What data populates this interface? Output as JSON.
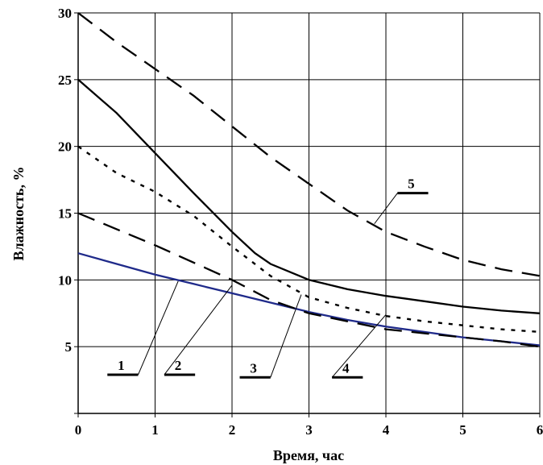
{
  "chart_data": {
    "type": "line",
    "xlabel": "Время, час",
    "ylabel": "Влажность, %",
    "xlim": [
      0,
      6
    ],
    "ylim": [
      0,
      30
    ],
    "x_ticks": [
      "0",
      "1",
      "2",
      "3",
      "4",
      "5",
      "6"
    ],
    "y_ticks": [
      "",
      "5",
      "10",
      "15",
      "20",
      "25",
      "30"
    ],
    "grid": true,
    "colors": {
      "series_1": "#1f2a8a",
      "default": "#000000"
    },
    "series": [
      {
        "name": "1",
        "style": "solid",
        "points": [
          [
            0,
            12.0
          ],
          [
            0.5,
            11.2
          ],
          [
            1,
            10.4
          ],
          [
            1.5,
            9.7
          ],
          [
            2,
            9.0
          ],
          [
            2.5,
            8.3
          ],
          [
            3,
            7.6
          ],
          [
            3.5,
            7.0
          ],
          [
            4,
            6.5
          ],
          [
            4.5,
            6.1
          ],
          [
            5,
            5.7
          ],
          [
            5.5,
            5.4
          ],
          [
            6,
            5.1
          ]
        ]
      },
      {
        "name": "2",
        "style": "dash-long",
        "points": [
          [
            0,
            15.0
          ],
          [
            0.5,
            13.8
          ],
          [
            1,
            12.6
          ],
          [
            1.5,
            11.3
          ],
          [
            2,
            10.0
          ],
          [
            2.5,
            8.5
          ],
          [
            3,
            7.5
          ],
          [
            3.5,
            6.9
          ],
          [
            4,
            6.3
          ],
          [
            4.5,
            6.0
          ],
          [
            5,
            5.7
          ],
          [
            5.5,
            5.4
          ],
          [
            6,
            5.0
          ]
        ]
      },
      {
        "name": "3",
        "style": "dotted",
        "points": [
          [
            0,
            20.0
          ],
          [
            0.5,
            18.0
          ],
          [
            1,
            16.6
          ],
          [
            1.5,
            14.8
          ],
          [
            2,
            12.5
          ],
          [
            2.5,
            10.3
          ],
          [
            3,
            8.7
          ],
          [
            3.5,
            7.9
          ],
          [
            4,
            7.3
          ],
          [
            4.5,
            6.9
          ],
          [
            5,
            6.6
          ],
          [
            5.5,
            6.3
          ],
          [
            6,
            6.1
          ]
        ]
      },
      {
        "name": "4",
        "style": "solid",
        "points": [
          [
            0,
            25.0
          ],
          [
            0.5,
            22.5
          ],
          [
            1,
            19.5
          ],
          [
            1.5,
            16.5
          ],
          [
            2,
            13.6
          ],
          [
            2.3,
            12.0
          ],
          [
            2.5,
            11.2
          ],
          [
            3,
            10.0
          ],
          [
            3.5,
            9.3
          ],
          [
            4,
            8.8
          ],
          [
            4.5,
            8.4
          ],
          [
            5,
            8.0
          ],
          [
            5.5,
            7.7
          ],
          [
            6,
            7.5
          ]
        ]
      },
      {
        "name": "5",
        "style": "dash-long",
        "points": [
          [
            0,
            30.0
          ],
          [
            0.5,
            27.8
          ],
          [
            1,
            25.8
          ],
          [
            1.5,
            23.8
          ],
          [
            2,
            21.5
          ],
          [
            2.5,
            19.2
          ],
          [
            3,
            17.2
          ],
          [
            3.5,
            15.2
          ],
          [
            4,
            13.6
          ],
          [
            4.5,
            12.5
          ],
          [
            5,
            11.5
          ],
          [
            5.5,
            10.8
          ],
          [
            6,
            10.3
          ]
        ]
      }
    ],
    "callouts": [
      {
        "label": "1",
        "x": 0.78,
        "y": 2.9,
        "target": [
          1.3,
          9.9
        ],
        "bar": [
          0.38,
          0.78
        ]
      },
      {
        "label": "2",
        "x": 1.12,
        "y": 2.9,
        "target": [
          2.0,
          9.6
        ],
        "bar": [
          1.12,
          1.52
        ]
      },
      {
        "label": "3",
        "x": 2.5,
        "y": 2.7,
        "target": [
          2.9,
          8.9
        ],
        "bar": [
          2.1,
          2.5
        ]
      },
      {
        "label": "4",
        "x": 3.3,
        "y": 2.7,
        "target": [
          4.0,
          7.4
        ],
        "bar": [
          3.3,
          3.7
        ]
      },
      {
        "label": "5",
        "x": 4.15,
        "y": 16.5,
        "target": [
          3.85,
          14.2
        ],
        "bar": [
          4.15,
          4.55
        ]
      }
    ]
  }
}
